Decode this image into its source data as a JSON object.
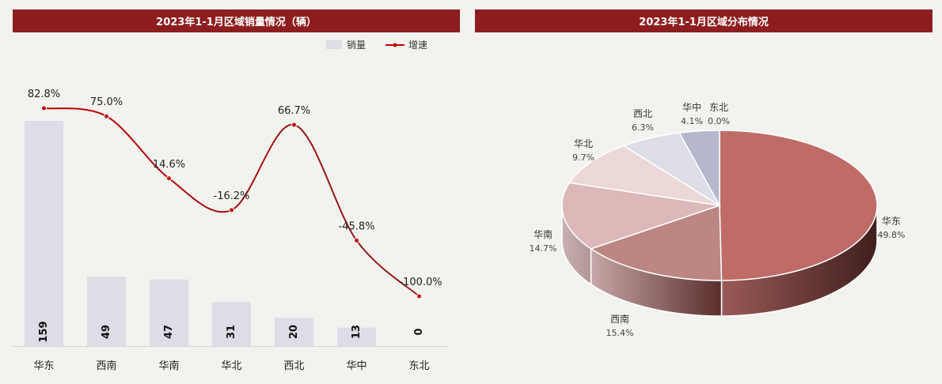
{
  "colors": {
    "title_bar": "#8e1d1f",
    "bar": "#dcdde6",
    "line": "#c00000",
    "background": "#f2f2ef"
  },
  "chart_data": [
    {
      "type": "bar",
      "title": "2023年1-1月区域销量情况（辆）",
      "categories": [
        "华东",
        "西南",
        "华南",
        "华北",
        "西北",
        "华中",
        "东北"
      ],
      "series": [
        {
          "name": "销量",
          "type": "bar",
          "values": [
            159,
            49,
            47,
            31,
            20,
            13,
            0
          ]
        },
        {
          "name": "增速",
          "type": "line",
          "values": [
            82.8,
            75.0,
            14.6,
            -16.2,
            66.7,
            -45.8,
            -100.0
          ],
          "labels": [
            "82.8%",
            "75.0%",
            "14.6%",
            "-16.2%",
            "66.7%",
            "-45.8%",
            "-100.0%"
          ]
        }
      ],
      "legend_position": "top-right",
      "grid": false
    },
    {
      "type": "pie",
      "title": "2023年1-1月区域分布情况",
      "categories": [
        "华东",
        "西南",
        "华南",
        "华北",
        "西北",
        "华中",
        "东北"
      ],
      "values": [
        49.8,
        15.4,
        14.7,
        9.7,
        6.3,
        4.1,
        0.0
      ],
      "labels": [
        "49.8%",
        "15.4%",
        "14.7%",
        "9.7%",
        "6.3%",
        "4.1%",
        "0.0%"
      ],
      "colors": [
        "#bf6b67",
        "#bc8682",
        "#dcb8b8",
        "#ebd7d6",
        "#dcdde6",
        "#b5b7cc",
        "#d2d3dc"
      ]
    }
  ]
}
